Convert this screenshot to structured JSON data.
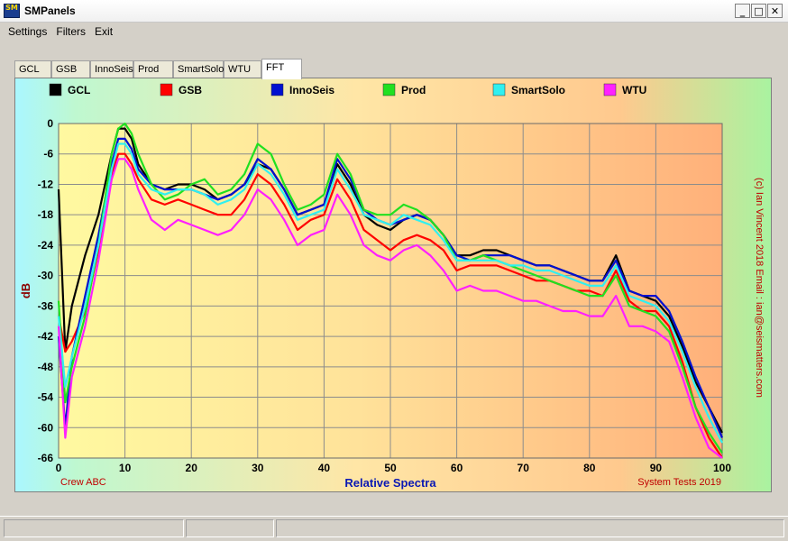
{
  "window": {
    "icon_text": "SM",
    "title": "SMPanels",
    "controls": [
      "_",
      "□",
      "✕"
    ]
  },
  "menu": [
    "Settings",
    "Filters",
    "Exit"
  ],
  "tabs": [
    {
      "label": "GCL",
      "active": false
    },
    {
      "label": "GSB",
      "active": false
    },
    {
      "label": "InnoSeis",
      "active": false
    },
    {
      "label": "Prod",
      "active": false
    },
    {
      "label": "SmartSolo",
      "active": false
    },
    {
      "label": "WTU",
      "active": false
    },
    {
      "label": "FFT",
      "active": true
    }
  ],
  "chart_labels": {
    "xlabel": "Relative Spectra",
    "ylabel": "dB",
    "left_note": "Crew ABC",
    "right_note": "System Tests 2019",
    "credit": "(c) Ian Vincent 2018  Email : ian@seismatters.com"
  },
  "colors": {
    "grid": "#8c8c8c",
    "xlabel": "#0a18b4",
    "ylabel": "#8b0000",
    "notes": "#c00000"
  },
  "status": [
    "",
    "",
    ""
  ],
  "chart_data": {
    "type": "line",
    "xlim": [
      0,
      100
    ],
    "ylim": [
      -66,
      0
    ],
    "xticks": [
      0,
      10,
      20,
      30,
      40,
      50,
      60,
      70,
      80,
      90,
      100
    ],
    "yticks": [
      0,
      -6,
      -12,
      -18,
      -24,
      -30,
      -36,
      -42,
      -48,
      -54,
      -60,
      -66
    ],
    "legend_position": "top",
    "series": [
      {
        "name": "GCL",
        "color": "#000000",
        "x": [
          0,
          1,
          2,
          4,
          6,
          8,
          9,
          10,
          11,
          12,
          14,
          16,
          18,
          20,
          22,
          24,
          26,
          28,
          30,
          32,
          34,
          36,
          38,
          40,
          42,
          44,
          46,
          48,
          50,
          52,
          54,
          56,
          58,
          60,
          62,
          64,
          66,
          68,
          70,
          72,
          74,
          76,
          78,
          80,
          82,
          84,
          86,
          88,
          90,
          92,
          94,
          96,
          98,
          100
        ],
        "y": [
          -13,
          -45,
          -36,
          -26,
          -18,
          -6,
          -1,
          -1,
          -3,
          -8,
          -12,
          -13,
          -12,
          -12,
          -13,
          -15,
          -14,
          -12,
          -8,
          -9,
          -13,
          -18,
          -17,
          -16,
          -8,
          -12,
          -18,
          -20,
          -21,
          -19,
          -18,
          -19,
          -22,
          -26,
          -26,
          -25,
          -25,
          -26,
          -27,
          -28,
          -28,
          -29,
          -30,
          -31,
          -31,
          -26,
          -33,
          -34,
          -35,
          -38,
          -44,
          -51,
          -56,
          -61
        ]
      },
      {
        "name": "GSB",
        "color": "#ff0000",
        "x": [
          0,
          1,
          2,
          4,
          6,
          8,
          9,
          10,
          11,
          12,
          14,
          16,
          18,
          20,
          22,
          24,
          26,
          28,
          30,
          32,
          34,
          36,
          38,
          40,
          42,
          44,
          46,
          48,
          50,
          52,
          54,
          56,
          58,
          60,
          62,
          64,
          66,
          68,
          70,
          72,
          74,
          76,
          78,
          80,
          82,
          84,
          86,
          88,
          90,
          92,
          94,
          96,
          98,
          100
        ],
        "y": [
          -38,
          -45,
          -43,
          -37,
          -25,
          -10,
          -6,
          -6,
          -8,
          -11,
          -15,
          -16,
          -15,
          -16,
          -17,
          -18,
          -18,
          -15,
          -10,
          -12,
          -16,
          -21,
          -19,
          -18,
          -11,
          -15,
          -21,
          -23,
          -25,
          -23,
          -22,
          -23,
          -25,
          -29,
          -28,
          -28,
          -28,
          -29,
          -30,
          -31,
          -31,
          -32,
          -33,
          -33,
          -34,
          -29,
          -35,
          -37,
          -37,
          -40,
          -47,
          -56,
          -62,
          -66
        ]
      },
      {
        "name": "InnoSeis",
        "color": "#0010d0",
        "x": [
          0,
          1,
          2,
          4,
          6,
          8,
          9,
          10,
          11,
          12,
          14,
          16,
          18,
          20,
          22,
          24,
          26,
          28,
          30,
          32,
          34,
          36,
          38,
          40,
          42,
          44,
          46,
          48,
          50,
          52,
          54,
          56,
          58,
          60,
          62,
          64,
          66,
          68,
          70,
          72,
          74,
          76,
          78,
          80,
          82,
          84,
          86,
          88,
          90,
          92,
          94,
          96,
          98,
          100
        ],
        "y": [
          -42,
          -60,
          -46,
          -34,
          -22,
          -8,
          -3,
          -3,
          -5,
          -9,
          -12,
          -13,
          -13,
          -13,
          -14,
          -15,
          -14,
          -12,
          -7,
          -9,
          -13,
          -18,
          -17,
          -16,
          -7,
          -11,
          -17,
          -19,
          -20,
          -19,
          -18,
          -19,
          -22,
          -26,
          -27,
          -26,
          -26,
          -26,
          -27,
          -28,
          -28,
          -29,
          -30,
          -31,
          -31,
          -27,
          -33,
          -34,
          -34,
          -37,
          -43,
          -50,
          -56,
          -62
        ]
      },
      {
        "name": "Prod",
        "color": "#20e020",
        "x": [
          0,
          1,
          2,
          4,
          6,
          8,
          9,
          10,
          11,
          12,
          14,
          16,
          18,
          20,
          22,
          24,
          26,
          28,
          30,
          32,
          34,
          36,
          38,
          40,
          42,
          44,
          46,
          48,
          50,
          52,
          54,
          56,
          58,
          60,
          62,
          64,
          66,
          68,
          70,
          72,
          74,
          76,
          78,
          80,
          82,
          84,
          86,
          88,
          90,
          92,
          94,
          96,
          98,
          100
        ],
        "y": [
          -35,
          -55,
          -48,
          -38,
          -24,
          -6,
          -1,
          0,
          -2,
          -6,
          -12,
          -15,
          -14,
          -12,
          -11,
          -14,
          -13,
          -10,
          -4,
          -6,
          -12,
          -17,
          -16,
          -14,
          -6,
          -10,
          -17,
          -18,
          -18,
          -16,
          -17,
          -19,
          -22,
          -27,
          -27,
          -26,
          -27,
          -28,
          -29,
          -30,
          -31,
          -32,
          -33,
          -34,
          -34,
          -30,
          -36,
          -37,
          -38,
          -41,
          -48,
          -56,
          -61,
          -65
        ]
      },
      {
        "name": "SmartSolo",
        "color": "#30f0f0",
        "x": [
          0,
          1,
          2,
          4,
          6,
          8,
          9,
          10,
          11,
          12,
          14,
          16,
          18,
          20,
          22,
          24,
          26,
          28,
          30,
          32,
          34,
          36,
          38,
          40,
          42,
          44,
          46,
          48,
          50,
          52,
          54,
          56,
          58,
          60,
          62,
          64,
          66,
          68,
          70,
          72,
          74,
          76,
          78,
          80,
          82,
          84,
          86,
          88,
          90,
          92,
          94,
          96,
          98,
          100
        ],
        "y": [
          -38,
          -52,
          -46,
          -36,
          -24,
          -9,
          -4,
          -4,
          -6,
          -10,
          -13,
          -14,
          -13,
          -13,
          -14,
          -16,
          -15,
          -13,
          -8,
          -10,
          -14,
          -19,
          -18,
          -17,
          -9,
          -13,
          -18,
          -19,
          -20,
          -18,
          -19,
          -20,
          -23,
          -27,
          -27,
          -27,
          -27,
          -28,
          -28,
          -29,
          -29,
          -30,
          -31,
          -32,
          -32,
          -28,
          -34,
          -35,
          -36,
          -39,
          -45,
          -52,
          -58,
          -63
        ]
      },
      {
        "name": "WTU",
        "color": "#ff20ff",
        "x": [
          0,
          1,
          2,
          4,
          6,
          8,
          9,
          10,
          11,
          12,
          14,
          16,
          18,
          20,
          22,
          24,
          26,
          28,
          30,
          32,
          34,
          36,
          38,
          40,
          42,
          44,
          46,
          48,
          50,
          52,
          54,
          56,
          58,
          60,
          62,
          64,
          66,
          68,
          70,
          72,
          74,
          76,
          78,
          80,
          82,
          84,
          86,
          88,
          90,
          92,
          94,
          96,
          98,
          100
        ],
        "y": [
          -40,
          -62,
          -50,
          -40,
          -27,
          -11,
          -7,
          -7,
          -9,
          -13,
          -19,
          -21,
          -19,
          -20,
          -21,
          -22,
          -21,
          -18,
          -13,
          -15,
          -19,
          -24,
          -22,
          -21,
          -14,
          -18,
          -24,
          -26,
          -27,
          -25,
          -24,
          -26,
          -29,
          -33,
          -32,
          -33,
          -33,
          -34,
          -35,
          -35,
          -36,
          -37,
          -37,
          -38,
          -38,
          -34,
          -40,
          -40,
          -41,
          -43,
          -50,
          -58,
          -64,
          -67
        ]
      }
    ]
  }
}
